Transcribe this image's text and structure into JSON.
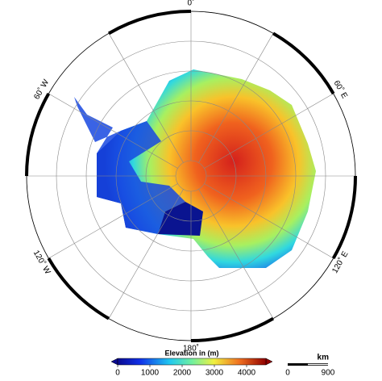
{
  "map": {
    "graticule_labels": [
      "0˚",
      "60˚ E",
      "120˚ E",
      "180˚",
      "120˚ W",
      "60˚ W"
    ]
  },
  "colorbar": {
    "title": "Elevation in (m)",
    "ticks": [
      0,
      1000,
      2000,
      3000,
      4000
    ],
    "range": [
      0,
      4600
    ]
  },
  "scale_bar": {
    "unit": "km",
    "labels": [
      0,
      900
    ]
  }
}
